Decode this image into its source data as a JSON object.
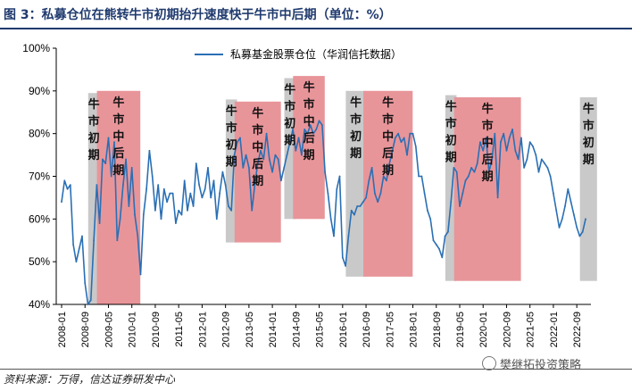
{
  "header": {
    "title": "图 3：私募仓位在熊转牛市初期抬升速度快于牛市中后期（单位：%）"
  },
  "footer": {
    "source": "资料来源：万得，信达证券研发中心",
    "watermark": "樊继拓投资策略"
  },
  "colors": {
    "line": "#2a6fb4",
    "early_band": "#c9c9c9",
    "late_band": "#e8959a",
    "title": "#1f3a6e"
  },
  "chart_data": {
    "type": "line",
    "title": "",
    "xlabel": "",
    "ylabel": "",
    "ylim": [
      40,
      100
    ],
    "y_ticks": [
      "40%",
      "50%",
      "60%",
      "70%",
      "80%",
      "90%",
      "100%"
    ],
    "y_tick_values": [
      40,
      50,
      60,
      70,
      80,
      90,
      100
    ],
    "grid": false,
    "legend_position": "top-center",
    "x_ticks": [
      "2008-01",
      "2008-09",
      "2009-05",
      "2010-01",
      "2010-09",
      "2011-05",
      "2012-01",
      "2012-09",
      "2013-05",
      "2014-01",
      "2014-09",
      "2015-05",
      "2016-01",
      "2016-09",
      "2017-05",
      "2018-01",
      "2018-09",
      "2019-05",
      "2020-01",
      "2020-09",
      "2021-05",
      "2022-01",
      "2022-09"
    ],
    "series": [
      {
        "name": "私募基金股票仓位（华润信托数据）",
        "points": [
          [
            "2008-01",
            64
          ],
          [
            "2008-02",
            69
          ],
          [
            "2008-03",
            67
          ],
          [
            "2008-04",
            68
          ],
          [
            "2008-05",
            54
          ],
          [
            "2008-06",
            50
          ],
          [
            "2008-07",
            53
          ],
          [
            "2008-08",
            56
          ],
          [
            "2008-09",
            45
          ],
          [
            "2008-10",
            40
          ],
          [
            "2008-11",
            41
          ],
          [
            "2008-12",
            55
          ],
          [
            "2009-01",
            68
          ],
          [
            "2009-02",
            59
          ],
          [
            "2009-03",
            74
          ],
          [
            "2009-04",
            73
          ],
          [
            "2009-05",
            79
          ],
          [
            "2009-06",
            70
          ],
          [
            "2009-07",
            78
          ],
          [
            "2009-08",
            55
          ],
          [
            "2009-09",
            60
          ],
          [
            "2009-10",
            68
          ],
          [
            "2009-11",
            74
          ],
          [
            "2009-12",
            63
          ],
          [
            "2010-01",
            72
          ],
          [
            "2010-02",
            61
          ],
          [
            "2010-03",
            56
          ],
          [
            "2010-04",
            47
          ],
          [
            "2010-05",
            61
          ],
          [
            "2010-06",
            67
          ],
          [
            "2010-07",
            76
          ],
          [
            "2010-08",
            70
          ],
          [
            "2010-09",
            62
          ],
          [
            "2010-10",
            68
          ],
          [
            "2010-11",
            60
          ],
          [
            "2010-12",
            67
          ],
          [
            "2011-01",
            64
          ],
          [
            "2011-02",
            66
          ],
          [
            "2011-03",
            66
          ],
          [
            "2011-04",
            59
          ],
          [
            "2011-05",
            62
          ],
          [
            "2011-06",
            61
          ],
          [
            "2011-07",
            69
          ],
          [
            "2011-08",
            62
          ],
          [
            "2011-09",
            66
          ],
          [
            "2011-10",
            63
          ],
          [
            "2011-11",
            73
          ],
          [
            "2011-12",
            68
          ],
          [
            "2012-01",
            65
          ],
          [
            "2012-02",
            67
          ],
          [
            "2012-03",
            72
          ],
          [
            "2012-04",
            65
          ],
          [
            "2012-05",
            69
          ],
          [
            "2012-06",
            60
          ],
          [
            "2012-07",
            66
          ],
          [
            "2012-08",
            71
          ],
          [
            "2012-09",
            68
          ],
          [
            "2012-10",
            63
          ],
          [
            "2012-11",
            62
          ],
          [
            "2012-12",
            75
          ],
          [
            "2013-01",
            78
          ],
          [
            "2013-02",
            79
          ],
          [
            "2013-03",
            72
          ],
          [
            "2013-04",
            75
          ],
          [
            "2013-05",
            72
          ],
          [
            "2013-06",
            62
          ],
          [
            "2013-07",
            68
          ],
          [
            "2013-08",
            73
          ],
          [
            "2013-09",
            76
          ],
          [
            "2013-10",
            74
          ],
          [
            "2013-11",
            80
          ],
          [
            "2013-12",
            74
          ],
          [
            "2014-01",
            71
          ],
          [
            "2014-02",
            75
          ],
          [
            "2014-03",
            74
          ],
          [
            "2014-04",
            69
          ],
          [
            "2014-05",
            72
          ],
          [
            "2014-06",
            75
          ],
          [
            "2014-07",
            78
          ],
          [
            "2014-08",
            81
          ],
          [
            "2014-09",
            76
          ],
          [
            "2014-10",
            79
          ],
          [
            "2014-11",
            75
          ],
          [
            "2014-12",
            81
          ],
          [
            "2015-01",
            80
          ],
          [
            "2015-02",
            82
          ],
          [
            "2015-03",
            80
          ],
          [
            "2015-04",
            81
          ],
          [
            "2015-05",
            83
          ],
          [
            "2015-06",
            82
          ],
          [
            "2015-07",
            71
          ],
          [
            "2015-08",
            66
          ],
          [
            "2015-09",
            60
          ],
          [
            "2015-10",
            56
          ],
          [
            "2015-11",
            67
          ],
          [
            "2015-12",
            70
          ],
          [
            "2016-01",
            51
          ],
          [
            "2016-02",
            49
          ],
          [
            "2016-03",
            56
          ],
          [
            "2016-04",
            62
          ],
          [
            "2016-05",
            61
          ],
          [
            "2016-06",
            63
          ],
          [
            "2016-07",
            63
          ],
          [
            "2016-08",
            64
          ],
          [
            "2016-09",
            65
          ],
          [
            "2016-10",
            69
          ],
          [
            "2016-11",
            72
          ],
          [
            "2016-12",
            66
          ],
          [
            "2017-01",
            64
          ],
          [
            "2017-02",
            66
          ],
          [
            "2017-03",
            70
          ],
          [
            "2017-04",
            69
          ],
          [
            "2017-05",
            73
          ],
          [
            "2017-06",
            76
          ],
          [
            "2017-07",
            79
          ],
          [
            "2017-08",
            80
          ],
          [
            "2017-09",
            78
          ],
          [
            "2017-10",
            79
          ],
          [
            "2017-11",
            75
          ],
          [
            "2017-12",
            80
          ],
          [
            "2018-01",
            80
          ],
          [
            "2018-02",
            77
          ],
          [
            "2018-03",
            70
          ],
          [
            "2018-04",
            70
          ],
          [
            "2018-05",
            66
          ],
          [
            "2018-06",
            62
          ],
          [
            "2018-07",
            60
          ],
          [
            "2018-08",
            55
          ],
          [
            "2018-09",
            54
          ],
          [
            "2018-10",
            53
          ],
          [
            "2018-11",
            51
          ],
          [
            "2018-12",
            56
          ],
          [
            "2019-01",
            57
          ],
          [
            "2019-02",
            64
          ],
          [
            "2019-03",
            72
          ],
          [
            "2019-04",
            71
          ],
          [
            "2019-05",
            63
          ],
          [
            "2019-06",
            66
          ],
          [
            "2019-07",
            69
          ],
          [
            "2019-08",
            70
          ],
          [
            "2019-09",
            72
          ],
          [
            "2019-10",
            71
          ],
          [
            "2019-11",
            73
          ],
          [
            "2019-12",
            78
          ],
          [
            "2020-01",
            76
          ],
          [
            "2020-02",
            79
          ],
          [
            "2020-03",
            71
          ],
          [
            "2020-04",
            74
          ],
          [
            "2020-05",
            80
          ],
          [
            "2020-06",
            65
          ],
          [
            "2020-07",
            78
          ],
          [
            "2020-08",
            80
          ],
          [
            "2020-09",
            76
          ],
          [
            "2020-10",
            79
          ],
          [
            "2020-11",
            81
          ],
          [
            "2020-12",
            76
          ],
          [
            "2021-01",
            74
          ],
          [
            "2021-02",
            79
          ],
          [
            "2021-03",
            72
          ],
          [
            "2021-04",
            74
          ],
          [
            "2021-05",
            78
          ],
          [
            "2021-06",
            77
          ],
          [
            "2021-07",
            75
          ],
          [
            "2021-08",
            71
          ],
          [
            "2021-09",
            74
          ],
          [
            "2021-10",
            73
          ],
          [
            "2021-11",
            72
          ],
          [
            "2021-12",
            70
          ],
          [
            "2022-01",
            66
          ],
          [
            "2022-02",
            62
          ],
          [
            "2022-03",
            58
          ],
          [
            "2022-04",
            60
          ],
          [
            "2022-05",
            63
          ],
          [
            "2022-06",
            67
          ],
          [
            "2022-07",
            64
          ],
          [
            "2022-08",
            61
          ],
          [
            "2022-09",
            58
          ],
          [
            "2022-10",
            56
          ],
          [
            "2022-11",
            57
          ],
          [
            "2022-12",
            60
          ]
        ]
      }
    ],
    "bands": [
      {
        "phase": "early",
        "label": "牛市初期",
        "x_start": "2008-11",
        "x_end": "2009-01",
        "y_min": 40,
        "y_max": 89.5
      },
      {
        "phase": "late",
        "label": "牛市中后期",
        "x_start": "2009-02",
        "x_end": "2010-03",
        "y_min": 40,
        "y_max": 90
      },
      {
        "phase": "early",
        "label": "牛市初期",
        "x_start": "2012-10",
        "x_end": "2012-12",
        "y_min": 54.5,
        "y_max": 88
      },
      {
        "phase": "late",
        "label": "牛市中后期",
        "x_start": "2013-01",
        "x_end": "2014-03",
        "y_min": 54.5,
        "y_max": 87.5
      },
      {
        "phase": "early",
        "label": "牛市初期",
        "x_start": "2014-06",
        "x_end": "2014-08",
        "y_min": 60,
        "y_max": 93
      },
      {
        "phase": "late",
        "label": "牛市中后期",
        "x_start": "2014-09",
        "x_end": "2015-06",
        "y_min": 60,
        "y_max": 93.5
      },
      {
        "phase": "early",
        "label": "牛市初期",
        "x_start": "2016-03",
        "x_end": "2016-08",
        "y_min": 46.5,
        "y_max": 90
      },
      {
        "phase": "late",
        "label": "牛市中后期",
        "x_start": "2016-09",
        "x_end": "2017-12",
        "y_min": 46.5,
        "y_max": 90
      },
      {
        "phase": "early",
        "label": "牛市初期",
        "x_start": "2019-01",
        "x_end": "2019-03",
        "y_min": 45.5,
        "y_max": 89
      },
      {
        "phase": "late",
        "label": "牛市中后期",
        "x_start": "2019-04",
        "x_end": "2021-01",
        "y_min": 45.5,
        "y_max": 88.5
      },
      {
        "phase": "early",
        "label": "牛市初期",
        "x_start": "2022-11",
        "x_end": "2023-03",
        "y_min": 45.5,
        "y_max": 88.5
      }
    ]
  }
}
